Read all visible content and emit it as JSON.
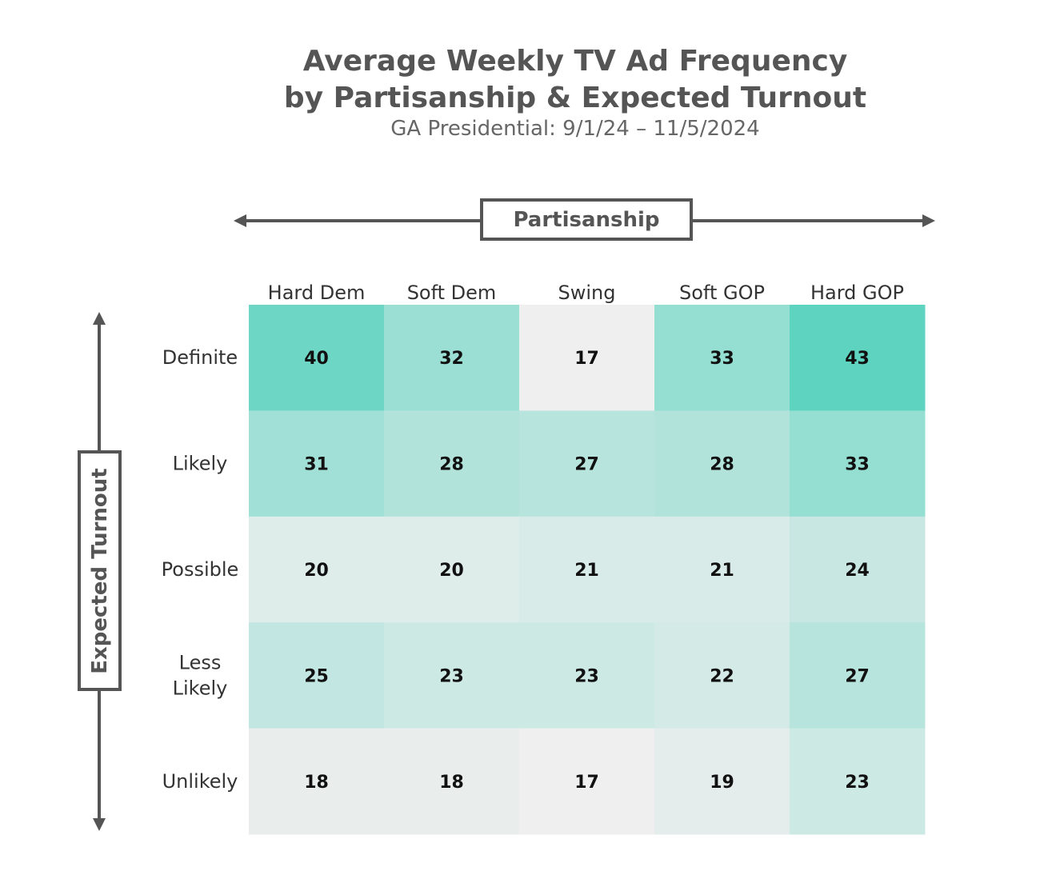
{
  "chart_data": {
    "type": "heatmap",
    "title": "Average Weekly TV Ad Frequency",
    "title_line2": "by Partisanship & Expected Turnout",
    "subtitle": "GA Presidential: 9/1/24 – 11/5/2024",
    "xlabel": "Partisanship",
    "ylabel": "Expected Turnout",
    "columns": [
      "Hard Dem",
      "Soft Dem",
      "Swing",
      "Soft GOP",
      "Hard GOP"
    ],
    "rows": [
      [
        "Definite"
      ],
      [
        "Likely"
      ],
      [
        "Possible"
      ],
      [
        "Less",
        "Likely"
      ],
      [
        "Unlikely"
      ]
    ],
    "values": [
      [
        40,
        32,
        17,
        33,
        43
      ],
      [
        31,
        28,
        27,
        28,
        33
      ],
      [
        20,
        20,
        21,
        21,
        24
      ],
      [
        25,
        23,
        23,
        22,
        27
      ],
      [
        18,
        18,
        17,
        19,
        23
      ]
    ],
    "value_range": [
      17,
      43
    ],
    "colors": {
      "low": "#efefef",
      "high": "#5dd3c0",
      "axis": "#555555"
    }
  }
}
